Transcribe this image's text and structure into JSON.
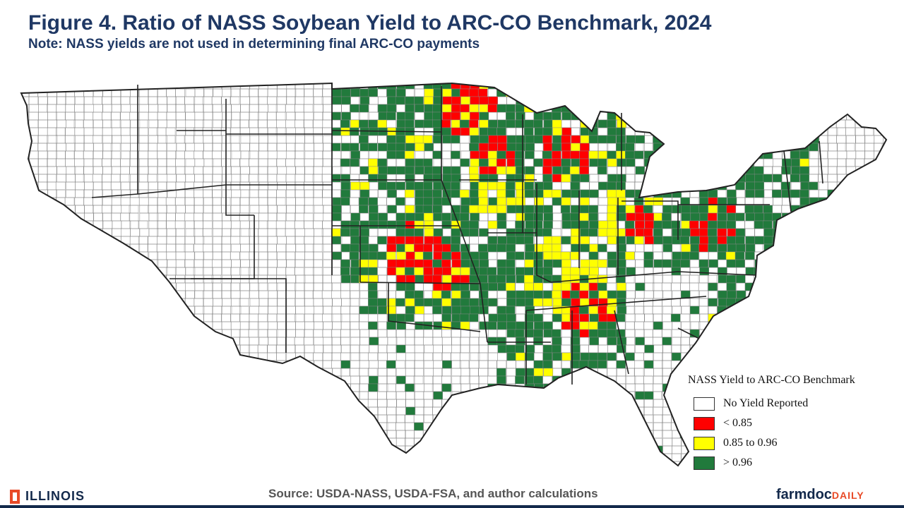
{
  "header": {
    "title": "Figure 4. Ratio of NASS Soybean Yield to ARC-CO Benchmark, 2024",
    "subtitle": "Note: NASS yields are not used in determining final ARC-CO payments"
  },
  "legend": {
    "title": "NASS Yield to ARC-CO Benchmark",
    "items": [
      {
        "label": "No Yield Reported",
        "color": "#ffffff"
      },
      {
        "label": "< 0.85",
        "color": "#ff0000"
      },
      {
        "label": "0.85 to 0.96",
        "color": "#ffff00"
      },
      {
        "label": "> 0.96",
        "color": "#217a3c"
      }
    ]
  },
  "footer": {
    "source": "Source: USDA-NASS, USDA-FSA, and author calculations",
    "left_logo": "ILLINOIS",
    "right_logo_main": "farmdoc",
    "right_logo_sub": "DAILY"
  },
  "map_colors": {
    "outline": "#222222",
    "county_line": "#888888",
    "red": "#ff0000",
    "yellow": "#ffff00",
    "green": "#217a3c"
  }
}
